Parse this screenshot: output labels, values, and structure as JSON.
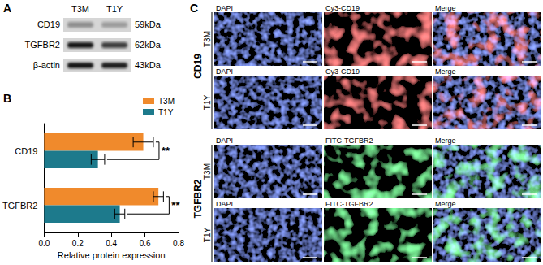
{
  "panel_labels": [
    "A",
    "B",
    "C"
  ],
  "panel_a": {
    "lanes": [
      "T3M",
      "T1Y"
    ],
    "rows": [
      {
        "protein": "CD19",
        "size": "59kDa"
      },
      {
        "protein": "TGFBR2",
        "size": "62kDa"
      },
      {
        "protein": "β-actin",
        "size": "43kDa"
      }
    ]
  },
  "chart_data": {
    "type": "bar",
    "orientation": "horizontal",
    "categories": [
      "CD19",
      "TGFBR2"
    ],
    "series": [
      {
        "name": "T3M",
        "color": "#f08a2c",
        "values": [
          0.59,
          0.68
        ],
        "errors": [
          0.06,
          0.03
        ]
      },
      {
        "name": "T1Y",
        "color": "#1d7a8c",
        "values": [
          0.32,
          0.45
        ],
        "errors": [
          0.04,
          0.03
        ]
      }
    ],
    "xlabel": "Relative protein expression",
    "xlim": [
      0,
      0.8
    ],
    "xticks": [
      {
        "value": 0,
        "label": "0.0"
      },
      0.2,
      0.4,
      0.6,
      0.8
    ],
    "grid": false,
    "legend": "top-right",
    "annotations": [
      {
        "category": "CD19",
        "text": "**"
      },
      {
        "category": "TGFBR2",
        "text": "**"
      }
    ]
  },
  "panel_c": {
    "groups": [
      {
        "marker": "CD19",
        "color": "#ff3a3a",
        "conditions": [
          {
            "name": "T3M",
            "channels": [
              "DAPI",
              "Cy3-CD19",
              "Merge"
            ]
          },
          {
            "name": "T1Y",
            "channels": [
              "DAPI",
              "Cy3-CD19",
              "Merge"
            ]
          }
        ]
      },
      {
        "marker": "TGFBR2",
        "color": "#3aff5a",
        "conditions": [
          {
            "name": "T3M",
            "channels": [
              "DAPI",
              "FITC-TGFBR2",
              "Merge"
            ]
          },
          {
            "name": "T1Y",
            "channels": [
              "DAPI",
              "FITC-TGFBR2",
              "Merge"
            ]
          }
        ]
      }
    ]
  }
}
